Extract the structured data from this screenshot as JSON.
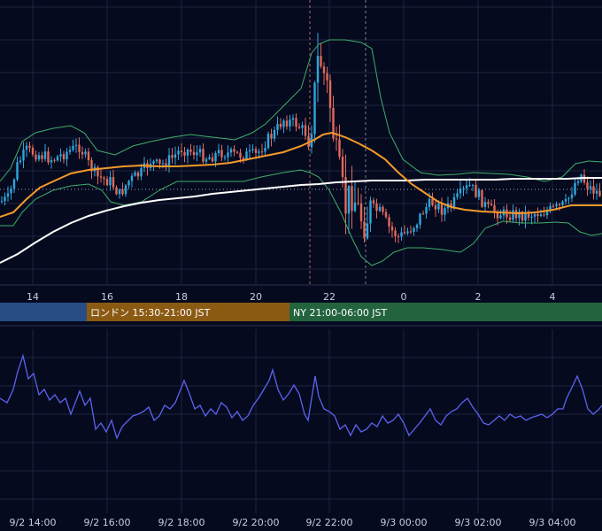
{
  "colors": {
    "background": "#060a1f",
    "grid": "#1f2440",
    "candle_up": "#2ea6dd",
    "candle_down": "#e06a5a",
    "bollinger": "#3fae6a",
    "ma_short": "#f39a2a",
    "ma_long": "#ffffff",
    "oscillator": "#5b63ee",
    "session_tokyo": "#284c86",
    "session_london": "#8b5a12",
    "session_ny": "#23643f"
  },
  "sessions": [
    {
      "label": "",
      "color": "#284c86"
    },
    {
      "label": "ロンドン 15:30-21:00 JST",
      "color": "#8b5a12"
    },
    {
      "label": "NY 21:00-06:00 JST",
      "color": "#23643f"
    }
  ],
  "chart_data": [
    {
      "type": "candlestick",
      "x_tick_labels": [
        "14",
        "16",
        "18",
        "20",
        "22",
        "0",
        "2",
        "4"
      ],
      "series": [
        {
          "name": "",
          "kind": "moving_average_short",
          "color": "#f39a2a"
        },
        {
          "name": "",
          "kind": "moving_average_long",
          "color": "#ffffff"
        },
        {
          "name": "",
          "kind": "bollinger_bands",
          "color": "#3fae6a"
        }
      ],
      "grid": true
    },
    {
      "type": "line",
      "x_tick_labels": [
        "9/2 14:00",
        "9/2 16:00",
        "9/2 18:00",
        "9/2 20:00",
        "9/2 22:00",
        "9/3 00:00",
        "9/3 02:00",
        "9/3 04:00"
      ],
      "series": [
        {
          "name": "",
          "color": "#5b63ee"
        }
      ],
      "grid": true
    }
  ]
}
